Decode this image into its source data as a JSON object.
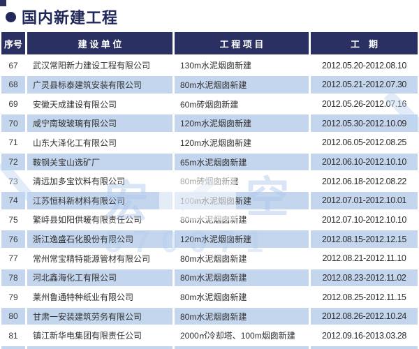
{
  "title": {
    "bullet": "●",
    "text": "国内新建工程"
  },
  "colors": {
    "header_bg": "#2a3162",
    "stripe_blue": "#c3d6ee",
    "title_navy": "#20295a",
    "body_text": "#303030"
  },
  "watermark": {
    "char_left": "宏",
    "char_right": "空",
    "digits": "570071"
  },
  "table": {
    "columns": [
      "序号",
      "建 设 单 位",
      "工 程 项 目",
      "工　期"
    ],
    "rows": [
      {
        "no": "67",
        "company": "武汉常阳新力建设工程有限公司",
        "project": "130m水泥烟囱新建",
        "period": "2012.05.20-2012.08.10"
      },
      {
        "no": "68",
        "company": "广灵县标泰建筑安装有限公司",
        "project": "80m水泥烟囱新建",
        "period": "2012.05.21-2012.07.30"
      },
      {
        "no": "69",
        "company": "安徽天成建设有限公司",
        "project": "60m砖烟囱新建",
        "period": "2012.05.26-2012.07.16"
      },
      {
        "no": "70",
        "company": "咸宁南玻玻璃有限公司",
        "project": "120m水泥烟囱新建",
        "period": "2012.05.30-2012.10.09"
      },
      {
        "no": "71",
        "company": "山东大泽化工有限公司",
        "project": "120m水泥烟囱新建",
        "period": "2012.06.05-2012.08.25"
      },
      {
        "no": "72",
        "company": "鞍钢关宝山选矿厂",
        "project": "65m水泥烟囱新建",
        "period": "2012.06.10-2012.10.10"
      },
      {
        "no": "73",
        "company": "清远加多宝饮料有限公司",
        "project": "80m砖烟囱新建",
        "period": "2012.06.18-2012.08.22"
      },
      {
        "no": "74",
        "company": "江苏恒科新材料有限公司",
        "project": "100m水泥烟囱新建",
        "period": "2012.07.01-2012.10.01"
      },
      {
        "no": "75",
        "company": "繁峙县如阳供暖有限责任公司",
        "project": "80m水泥烟囱新建",
        "period": "2012.07.10-2012.10.10"
      },
      {
        "no": "76",
        "company": "浙江逸盛石化股份有限公司",
        "project": "120m水泥烟囱新建",
        "period": "2012.08.15-2012.12.15"
      },
      {
        "no": "77",
        "company": "常州常宝精特能源管材有限公司",
        "project": "80m水泥烟囱新建",
        "period": "2012.08.21-2012.11.10"
      },
      {
        "no": "78",
        "company": "河北鑫海化工有限公司",
        "project": "80m水泥烟囱新建",
        "period": "2012.08.23-2012.11.02"
      },
      {
        "no": "79",
        "company": "莱州鲁通特种纸业有限公司",
        "project": "80m水泥烟囱新建",
        "period": "2012.08.25-2012.11.15"
      },
      {
        "no": "80",
        "company": "甘肃一安装建筑劳务有限公司",
        "project": "80m水泥烟囱新建",
        "period": "2012.08.26-2012.10.24"
      },
      {
        "no": "81",
        "company": "镇江新华电集团有限责任公司",
        "project": "2000㎡冷却塔、100m烟囱新建",
        "period": "2012.09.16-2013.03.28"
      }
    ]
  }
}
